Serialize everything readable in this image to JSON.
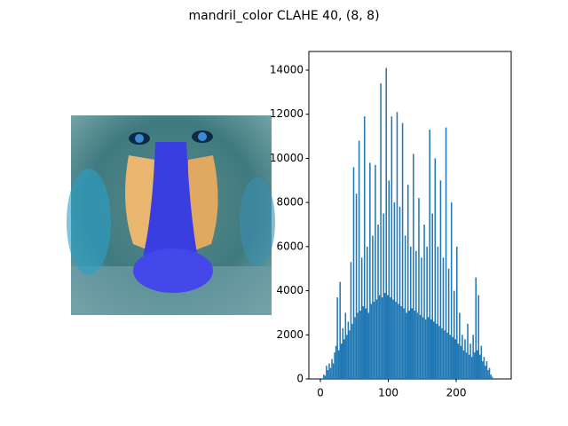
{
  "chart_data": {
    "type": "histogram",
    "title": "mandril_color CLAHE 40, (8, 8)",
    "color": "#1f77b4",
    "bins": [
      0,
      2,
      4,
      6,
      8,
      10,
      12,
      14,
      16,
      18,
      20,
      22,
      24,
      26,
      28,
      30,
      32,
      34,
      36,
      38,
      40,
      42,
      44,
      46,
      48,
      50,
      52,
      54,
      56,
      58,
      60,
      62,
      64,
      66,
      68,
      70,
      72,
      74,
      76,
      78,
      80,
      82,
      84,
      86,
      88,
      90,
      92,
      94,
      96,
      98,
      100,
      102,
      104,
      106,
      108,
      110,
      112,
      114,
      116,
      118,
      120,
      122,
      124,
      126,
      128,
      130,
      132,
      134,
      136,
      138,
      140,
      142,
      144,
      146,
      148,
      150,
      152,
      154,
      156,
      158,
      160,
      162,
      164,
      166,
      168,
      170,
      172,
      174,
      176,
      178,
      180,
      182,
      184,
      186,
      188,
      190,
      192,
      194,
      196,
      198,
      200,
      202,
      204,
      206,
      208,
      210,
      212,
      214,
      216,
      218,
      220,
      222,
      224,
      226,
      228,
      230,
      232,
      234,
      236,
      238,
      240,
      242,
      244,
      246,
      248,
      250,
      252,
      254,
      256
    ],
    "values": [
      0,
      0,
      200,
      150,
      600,
      400,
      700,
      500,
      900,
      700,
      1200,
      1500,
      3700,
      1300,
      4400,
      1600,
      2300,
      1800,
      3000,
      2000,
      2600,
      2200,
      5300,
      2500,
      9600,
      2800,
      8400,
      3000,
      10800,
      3100,
      5500,
      3300,
      11900,
      3200,
      6000,
      3000,
      9800,
      3400,
      6500,
      3500,
      9700,
      3600,
      7000,
      3800,
      13400,
      3700,
      7500,
      3900,
      14100,
      3800,
      9000,
      3700,
      11900,
      3600,
      8000,
      3500,
      12100,
      3400,
      7800,
      3300,
      11600,
      3200,
      6500,
      3000,
      8800,
      3100,
      6000,
      3200,
      10200,
      3100,
      5800,
      3000,
      8200,
      2900,
      5500,
      2800,
      7000,
      2700,
      6000,
      2800,
      11300,
      2700,
      7500,
      2600,
      10000,
      2500,
      6000,
      2400,
      9000,
      2300,
      5500,
      2200,
      11400,
      2100,
      5000,
      2000,
      8000,
      1900,
      4000,
      1800,
      6000,
      1600,
      3000,
      1500,
      2000,
      1300,
      1800,
      1200,
      2500,
      1100,
      1600,
      1000,
      2000,
      1200,
      4600,
      1300,
      3800,
      1100,
      1500,
      800,
      1000,
      600,
      800,
      400,
      500,
      200,
      100,
      0
    ],
    "xlim": [
      -17,
      281
    ],
    "ylim": [
      0,
      14845
    ],
    "xticks": [
      0,
      100,
      200
    ],
    "yticks": [
      0,
      2000,
      4000,
      6000,
      8000,
      10000,
      12000,
      14000
    ]
  }
}
